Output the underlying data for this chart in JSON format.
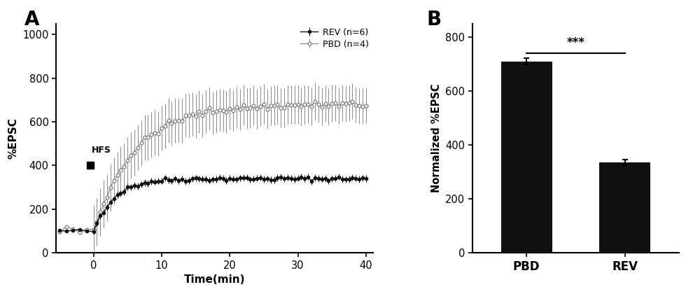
{
  "panel_A": {
    "title": "A",
    "xlabel": "Time(min)",
    "ylabel": "%EPSC",
    "ylim": [
      0,
      1050
    ],
    "yticks": [
      0,
      200,
      400,
      600,
      800,
      1000
    ],
    "xlim": [
      -5.5,
      41
    ],
    "xticks": [
      0,
      10,
      20,
      30,
      40
    ],
    "hfs_label": "HFS",
    "rev_label": "REV (n=6)",
    "pbd_label": "PBD (n=4)",
    "line_color_rev": "#111111",
    "line_color_pbd": "#888888",
    "rev_plateau": 340,
    "rev_tau": 3.0,
    "rev_pre_base": 100,
    "rev_post_sem": 15,
    "pbd_plateau": 680,
    "pbd_tau": 6.0,
    "pbd_pre_base": 100,
    "pbd_post_sem_early": 110,
    "pbd_post_sem_late": 80
  },
  "panel_B": {
    "title": "B",
    "ylabel": "Normalized %EPSC",
    "ylim": [
      0,
      850
    ],
    "yticks": [
      0,
      200,
      400,
      600,
      800
    ],
    "categories": [
      "PBD",
      "REV"
    ],
    "values": [
      710,
      335
    ],
    "errors": [
      12,
      10
    ],
    "bar_color": "#111111",
    "sig_label": "***",
    "sig_y": 755,
    "sig_line_y": 740
  }
}
